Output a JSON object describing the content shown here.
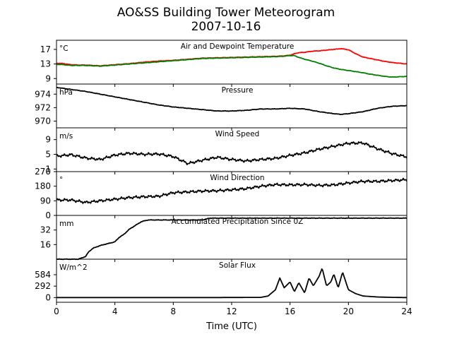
{
  "figure": {
    "title_line1": "AO&SS Building Tower Meteorogram",
    "title_line2": "2007-10-16",
    "xlabel": "Time (UTC)",
    "xticks": [
      0,
      4,
      8,
      12,
      16,
      20,
      24
    ],
    "xlim": [
      0,
      24
    ]
  },
  "colors": {
    "air_temperature": "#ff0000",
    "dewpoint": "#008000",
    "default": "#000000"
  },
  "chart_data": [
    {
      "type": "line",
      "title": "Air and Dewpoint Temperature",
      "unit_label": "°C",
      "ylim": [
        7.5,
        19.5
      ],
      "yticks": [
        9,
        13,
        17
      ],
      "series": [
        {
          "color": "red",
          "x": [
            0,
            0.5,
            1,
            1.5,
            2,
            2.5,
            3,
            4,
            5,
            6,
            7,
            8,
            9,
            10,
            11,
            12,
            13,
            14,
            15,
            15.5,
            16,
            16.3,
            16.6,
            17,
            17.5,
            18,
            18.5,
            19,
            19.5,
            20,
            20.5,
            21,
            21.5,
            22,
            22.5,
            23,
            23.5,
            24
          ],
          "y": [
            13.2,
            13.1,
            12.8,
            12.7,
            12.7,
            12.6,
            12.5,
            12.8,
            13.1,
            13.5,
            13.8,
            14.0,
            14.3,
            14.6,
            14.7,
            14.8,
            14.9,
            15.0,
            15.1,
            15.2,
            15.4,
            15.8,
            16.1,
            16.2,
            16.5,
            16.6,
            16.8,
            17.0,
            17.2,
            16.9,
            15.8,
            14.9,
            14.5,
            14.1,
            13.7,
            13.4,
            13.2,
            13.0
          ]
        },
        {
          "color": "green",
          "x": [
            0,
            0.5,
            1,
            1.5,
            2,
            2.5,
            3,
            4,
            5,
            6,
            7,
            8,
            9,
            10,
            11,
            12,
            13,
            14,
            15,
            15.5,
            16,
            16.3,
            16.6,
            17,
            17.5,
            18,
            18.5,
            19,
            19.5,
            20,
            20.5,
            21,
            21.5,
            22,
            22.5,
            23,
            23.5,
            24
          ],
          "y": [
            12.9,
            12.8,
            12.6,
            12.6,
            12.6,
            12.5,
            12.4,
            12.7,
            13.0,
            13.3,
            13.6,
            13.9,
            14.2,
            14.5,
            14.6,
            14.7,
            14.8,
            14.9,
            15.0,
            15.1,
            15.3,
            15.3,
            14.8,
            14.3,
            13.8,
            13.2,
            12.5,
            11.9,
            11.5,
            11.2,
            10.9,
            10.6,
            10.2,
            9.9,
            9.6,
            9.4,
            9.5,
            9.6
          ]
        }
      ]
    },
    {
      "type": "line",
      "title": "Pressure",
      "unit_label": "hPa",
      "ylim": [
        969.0,
        975.5
      ],
      "yticks": [
        970,
        972,
        974
      ],
      "series": [
        {
          "color": "black",
          "x": [
            0,
            1,
            2,
            3,
            4,
            5,
            6,
            7,
            8,
            9,
            10,
            11,
            12,
            13,
            14,
            15,
            16,
            17,
            18,
            19,
            19.5,
            20,
            21,
            22,
            23,
            24
          ],
          "y": [
            975.0,
            974.7,
            974.4,
            974.0,
            973.6,
            973.2,
            972.8,
            972.4,
            972.1,
            971.9,
            971.7,
            971.5,
            971.5,
            971.6,
            971.8,
            971.8,
            971.9,
            971.8,
            971.4,
            971.1,
            971.0,
            971.1,
            971.4,
            971.9,
            972.2,
            972.3
          ]
        }
      ]
    },
    {
      "type": "line",
      "title": "Wind Speed",
      "unit_label": "m/s",
      "ylim": [
        0.3,
        12.2
      ],
      "yticks": [
        1,
        5,
        9
      ],
      "series": [
        {
          "color": "black",
          "x": [
            0,
            1,
            2,
            3,
            4,
            5,
            6,
            7,
            8,
            9,
            10,
            11,
            12,
            13,
            14,
            15,
            16,
            17,
            18,
            19,
            20,
            21,
            22,
            23,
            24
          ],
          "y": [
            4.5,
            4.9,
            4.0,
            3.6,
            4.8,
            5.3,
            5.0,
            5.1,
            4.4,
            2.5,
            3.4,
            4.2,
            3.6,
            3.2,
            3.6,
            3.9,
            4.7,
            5.4,
            6.4,
            7.2,
            8.0,
            8.1,
            6.5,
            5.2,
            4.3
          ]
        }
      ]
    },
    {
      "type": "line",
      "title": "Wind Direction",
      "unit_label": "°",
      "ylim": [
        0,
        270
      ],
      "yticks": [
        0,
        90,
        180,
        270
      ],
      "series": [
        {
          "color": "black",
          "x": [
            0,
            1,
            2,
            3,
            4,
            5,
            6,
            7,
            8,
            9,
            10,
            11,
            12,
            13,
            14,
            15,
            16,
            17,
            18,
            19,
            20,
            21,
            22,
            23,
            24
          ],
          "y": [
            95,
            95,
            80,
            90,
            100,
            110,
            115,
            118,
            140,
            145,
            150,
            152,
            158,
            165,
            180,
            190,
            188,
            190,
            185,
            188,
            200,
            210,
            210,
            215,
            220
          ]
        }
      ]
    },
    {
      "type": "line",
      "title": "Accumulated Precipitation Since 0Z",
      "unit_label": "mm",
      "ylim": [
        0,
        48
      ],
      "yticks": [
        16,
        32
      ],
      "series": [
        {
          "color": "black",
          "x": [
            0,
            1.5,
            2,
            2.2,
            2.5,
            3,
            3.5,
            4,
            4.3,
            4.6,
            5,
            5.5,
            5.8,
            6,
            6.3,
            10,
            10.5,
            24
          ],
          "y": [
            0,
            0,
            3,
            8,
            12,
            15,
            17,
            19,
            24,
            27,
            33,
            38,
            41,
            42,
            43,
            43,
            45,
            45
          ]
        }
      ]
    },
    {
      "type": "line",
      "title": "Solar Flux",
      "unit_label": "W/m^2",
      "ylim": [
        -120,
        980
      ],
      "yticks": [
        0,
        292,
        584
      ],
      "series": [
        {
          "color": "black",
          "x": [
            0,
            10,
            14,
            14.5,
            15,
            15.3,
            15.6,
            16,
            16.3,
            16.6,
            17,
            17.3,
            17.6,
            18,
            18.2,
            18.5,
            18.8,
            19,
            19.3,
            19.6,
            20,
            20.5,
            21,
            22,
            23,
            24
          ],
          "y": [
            0,
            0,
            5,
            40,
            200,
            500,
            250,
            400,
            150,
            380,
            120,
            500,
            300,
            550,
            750,
            300,
            400,
            600,
            250,
            650,
            200,
            100,
            40,
            15,
            5,
            0
          ]
        }
      ]
    }
  ]
}
